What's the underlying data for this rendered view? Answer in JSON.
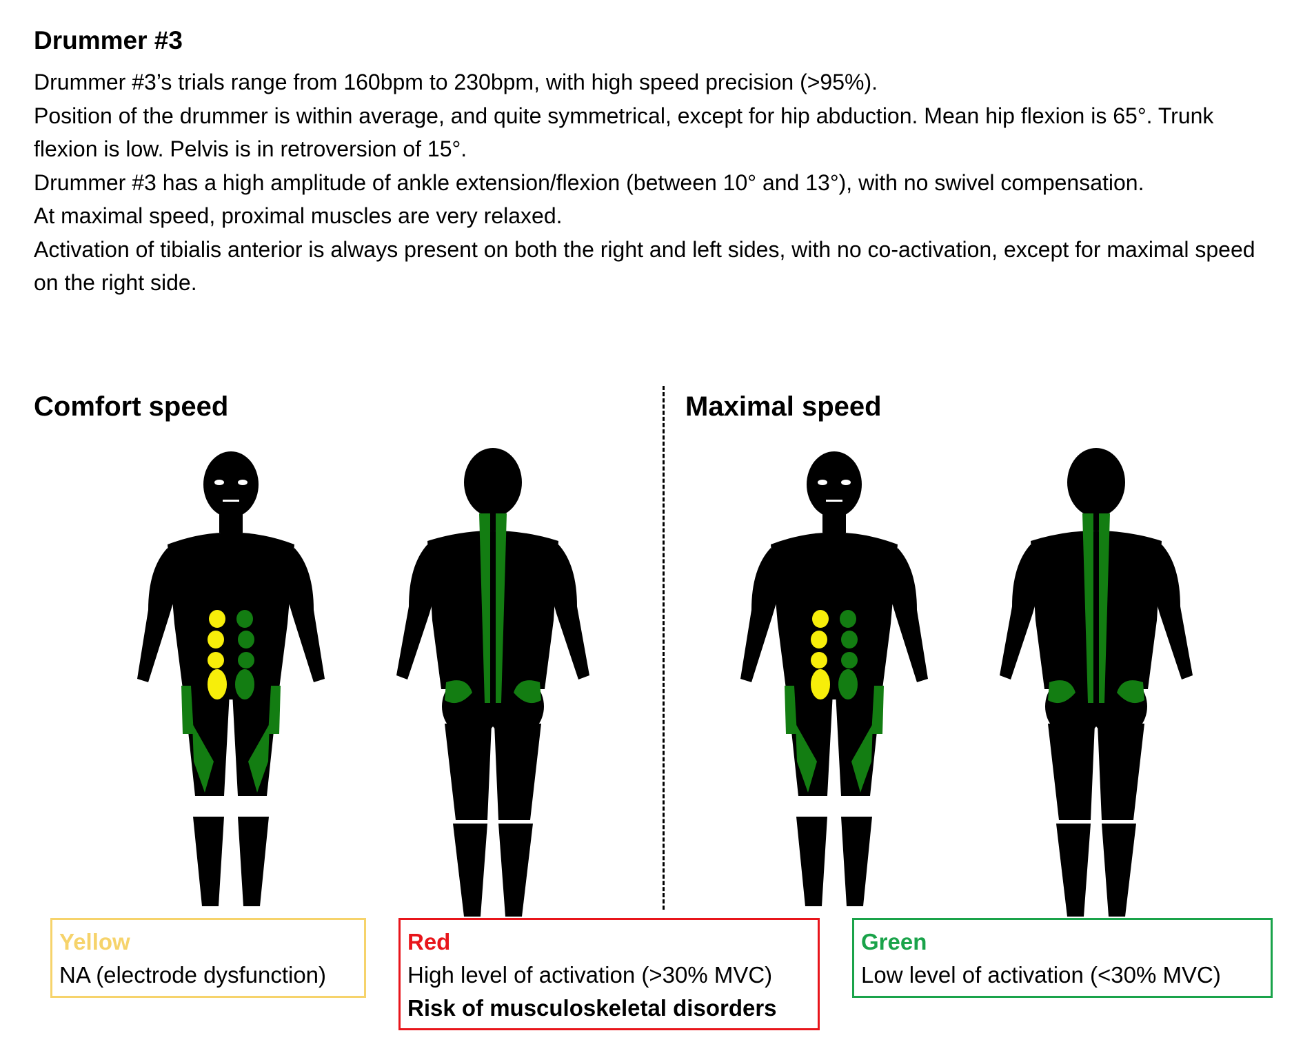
{
  "title": "Drummer #3",
  "description": [
    "Drummer #3’s trials range from 160bpm to 230bpm, with high speed precision (>95%).",
    "Position of the drummer is within average, and quite symmetrical, except for hip abduction. Mean hip flexion is 65°.  Trunk flexion is low. Pelvis is in retroversion of 15°.",
    "Drummer #3 has a high amplitude of ankle extension/flexion (between 10° and 13°), with no swivel compensation.",
    "At maximal speed, proximal muscles are very relaxed.",
    "Activation of tibialis anterior is always present on both the right and left sides, with no co-activation, except for maximal speed on the right side."
  ],
  "sections": {
    "comfort": "Comfort speed",
    "maximal": "Maximal speed"
  },
  "colors": {
    "body": "#000000",
    "yellow": "#f7ee0a",
    "green": "#137d12",
    "legend_yellow": "#f6d36b",
    "legend_red": "#e8151b",
    "legend_green": "#1aa34a"
  },
  "legend": {
    "yellow": {
      "title": "Yellow",
      "lines": [
        "NA (electrode dysfunction)"
      ]
    },
    "red": {
      "title": "Red",
      "lines": [
        "High level of activation (>30% MVC)",
        "Risk of musculoskeletal disorders"
      ]
    },
    "green": {
      "title": "Green",
      "lines": [
        "Low level of activation (<30% MVC)"
      ]
    }
  },
  "figures": [
    {
      "view": "front",
      "abdominals_left": "yellow",
      "abdominals_right": "green",
      "thighs": "green"
    },
    {
      "view": "back",
      "spine": "green",
      "glutes": "green"
    },
    {
      "view": "front",
      "abdominals_left": "yellow",
      "abdominals_right": "green",
      "thighs": "green"
    },
    {
      "view": "back",
      "spine": "green",
      "glutes": "green"
    }
  ]
}
